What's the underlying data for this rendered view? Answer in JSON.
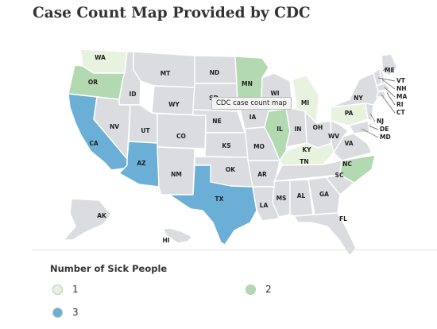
{
  "title": "Case Count Map Provided by CDC",
  "tooltip": "CDC case count map",
  "legend": {
    "title": "Number of Sick People",
    "items": [
      {
        "label": "1",
        "color": "#e7f3df"
      },
      {
        "label": "2",
        "color": "#b3d9b0"
      },
      {
        "label": "3",
        "color": "#6baed6"
      }
    ]
  },
  "colors": {
    "no_cases": "#dadcdf",
    "state_border": "#ffffff",
    "background": "#ffffff"
  },
  "states": [
    {
      "code": "WA",
      "cases": 1,
      "label": "WA"
    },
    {
      "code": "OR",
      "cases": 2,
      "label": "OR"
    },
    {
      "code": "CA",
      "cases": 3,
      "label": "CA"
    },
    {
      "code": "ID",
      "cases": 0,
      "label": "ID"
    },
    {
      "code": "NV",
      "cases": 0,
      "label": "NV"
    },
    {
      "code": "MT",
      "cases": 0,
      "label": "MT"
    },
    {
      "code": "WY",
      "cases": 0,
      "label": "WY"
    },
    {
      "code": "UT",
      "cases": 0,
      "label": "UT"
    },
    {
      "code": "AZ",
      "cases": 3,
      "label": "AZ"
    },
    {
      "code": "CO",
      "cases": 0,
      "label": "CO"
    },
    {
      "code": "NM",
      "cases": 0,
      "label": "NM"
    },
    {
      "code": "ND",
      "cases": 0,
      "label": "ND"
    },
    {
      "code": "SD",
      "cases": 0,
      "label": "SD"
    },
    {
      "code": "NE",
      "cases": 0,
      "label": "NE"
    },
    {
      "code": "KS",
      "cases": 0,
      "label": "KS"
    },
    {
      "code": "OK",
      "cases": 0,
      "label": "OK"
    },
    {
      "code": "TX",
      "cases": 3,
      "label": "TX"
    },
    {
      "code": "MN",
      "cases": 2,
      "label": "MN"
    },
    {
      "code": "IA",
      "cases": 0,
      "label": "IA"
    },
    {
      "code": "MO",
      "cases": 0,
      "label": "MO"
    },
    {
      "code": "AR",
      "cases": 0,
      "label": "AR"
    },
    {
      "code": "LA",
      "cases": 0,
      "label": "LA"
    },
    {
      "code": "WI",
      "cases": 0,
      "label": "WI"
    },
    {
      "code": "IL",
      "cases": 2,
      "label": "IL"
    },
    {
      "code": "MI",
      "cases": 1,
      "label": "MI"
    },
    {
      "code": "IN",
      "cases": 0,
      "label": "IN"
    },
    {
      "code": "OH",
      "cases": 0,
      "label": "OH"
    },
    {
      "code": "KY",
      "cases": 1,
      "label": "KY"
    },
    {
      "code": "TN",
      "cases": 0,
      "label": "TN"
    },
    {
      "code": "MS",
      "cases": 0,
      "label": "MS"
    },
    {
      "code": "AL",
      "cases": 0,
      "label": "AL"
    },
    {
      "code": "GA",
      "cases": 0,
      "label": "GA"
    },
    {
      "code": "FL",
      "cases": 0,
      "label": "FL"
    },
    {
      "code": "SC",
      "cases": 0,
      "label": "SC"
    },
    {
      "code": "NC",
      "cases": 2,
      "label": "NC"
    },
    {
      "code": "VA",
      "cases": 0,
      "label": "VA"
    },
    {
      "code": "WV",
      "cases": 0,
      "label": "WV"
    },
    {
      "code": "PA",
      "cases": 1,
      "label": "PA"
    },
    {
      "code": "NY",
      "cases": 0,
      "label": "NY"
    },
    {
      "code": "ME",
      "cases": 0,
      "label": "ME"
    },
    {
      "code": "VT",
      "cases": 0,
      "label": "VT"
    },
    {
      "code": "NH",
      "cases": 0,
      "label": "NH"
    },
    {
      "code": "MA",
      "cases": 0,
      "label": "MA"
    },
    {
      "code": "RI",
      "cases": 0,
      "label": "RI"
    },
    {
      "code": "CT",
      "cases": 0,
      "label": "CT"
    },
    {
      "code": "NJ",
      "cases": 0,
      "label": "NJ"
    },
    {
      "code": "DE",
      "cases": 0,
      "label": "DE"
    },
    {
      "code": "MD",
      "cases": 0,
      "label": "MD"
    },
    {
      "code": "AK",
      "cases": 0,
      "label": "AK"
    },
    {
      "code": "HI",
      "cases": 0,
      "label": "HI"
    }
  ]
}
